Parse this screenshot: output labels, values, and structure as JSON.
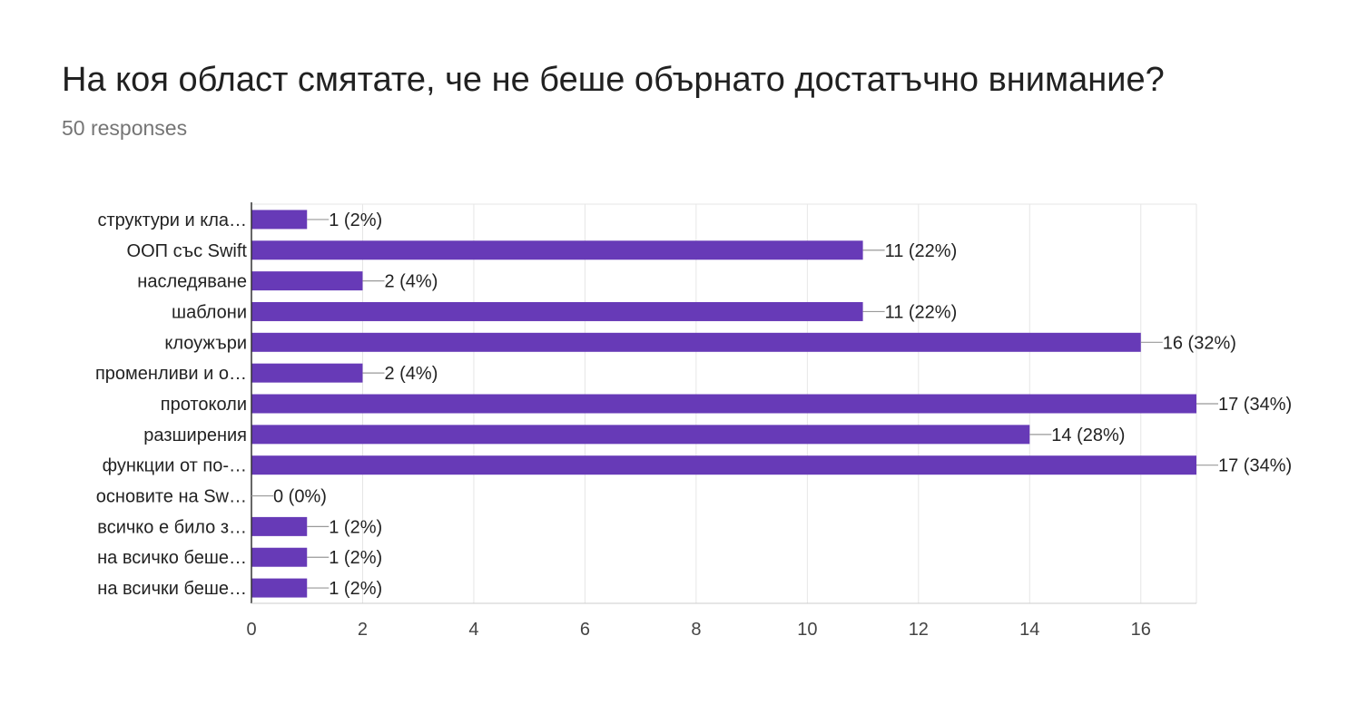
{
  "title": "На коя област смятате, че не беше обърнато достатъчно внимание?",
  "subtitle": "50 responses",
  "chart_data": {
    "type": "bar",
    "orientation": "horizontal",
    "categories": [
      "структури и кла…",
      "ООП със Swift",
      "наследяване",
      "шаблони",
      "клоужъри",
      "променливи и о…",
      "протоколи",
      "разширения",
      "функции от по-…",
      "основите на Sw…",
      "всичко е било з…",
      "на всичко беше…",
      "на всички беше…"
    ],
    "values": [
      1,
      11,
      2,
      11,
      16,
      2,
      17,
      14,
      17,
      0,
      1,
      1,
      1
    ],
    "data_labels": [
      "1 (2%)",
      "11 (22%)",
      "2 (4%)",
      "11 (22%)",
      "16 (32%)",
      "2 (4%)",
      "17 (34%)",
      "14 (28%)",
      "17 (34%)",
      "0 (0%)",
      "1 (2%)",
      "1 (2%)",
      "1 (2%)"
    ],
    "xlim": [
      0,
      17
    ],
    "xticks": [
      0,
      2,
      4,
      6,
      8,
      10,
      12,
      14,
      16
    ],
    "grid": true,
    "bar_color": "#673ab7"
  }
}
